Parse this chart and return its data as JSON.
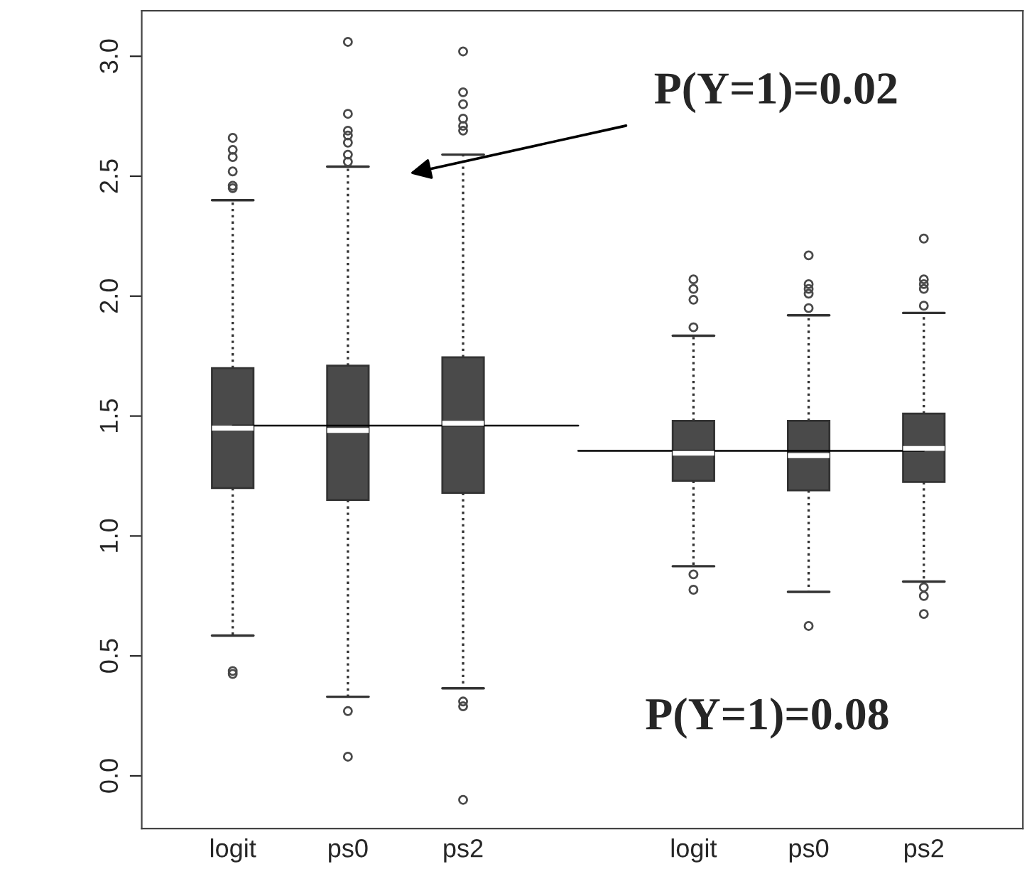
{
  "chart_data": {
    "type": "box",
    "categories": [
      "logit",
      "ps0",
      "ps2",
      null,
      "logit",
      "ps0",
      "ps2"
    ],
    "ylim": [
      -0.22,
      3.19
    ],
    "yticks": [
      {
        "value": 0,
        "label": "0.0"
      },
      0.5,
      {
        "value": 1,
        "label": "1.0"
      },
      1.5,
      {
        "value": 2,
        "label": "2.0"
      },
      2.5,
      {
        "value": 3,
        "label": "3.0"
      }
    ],
    "grid": false,
    "series": [
      {
        "type": "box",
        "color": "#4a4a4a",
        "boxes": [
          {
            "low": 0.585,
            "q1": 1.2,
            "median": 1.45,
            "q3": 1.7,
            "high": 2.4,
            "outliers": [
              2.66,
              2.61,
              2.58,
              2.52,
              2.46,
              2.45,
              0.437,
              0.425
            ]
          },
          {
            "low": 0.33,
            "q1": 1.15,
            "median": 1.44,
            "q3": 1.71,
            "high": 2.54,
            "outliers": [
              3.06,
              2.76,
              2.69,
              2.67,
              2.64,
              2.59,
              2.56,
              0.27,
              0.08
            ]
          },
          {
            "low": 0.365,
            "q1": 1.18,
            "median": 1.47,
            "q3": 1.745,
            "high": 2.59,
            "outliers": [
              3.02,
              2.85,
              2.8,
              2.74,
              2.71,
              2.69,
              0.31,
              0.29,
              -0.1
            ]
          },
          null,
          {
            "low": 0.874,
            "q1": 1.23,
            "median": 1.345,
            "q3": 1.48,
            "high": 1.835,
            "outliers": [
              2.07,
              2.03,
              1.985,
              1.87,
              0.84,
              0.776
            ]
          },
          {
            "low": 0.767,
            "q1": 1.19,
            "median": 1.335,
            "q3": 1.48,
            "high": 1.92,
            "outliers": [
              2.17,
              2.05,
              2.03,
              2.01,
              1.95,
              0.625
            ]
          },
          {
            "low": 0.81,
            "q1": 1.225,
            "median": 1.365,
            "q3": 1.51,
            "high": 1.93,
            "outliers": [
              2.24,
              2.07,
              2.05,
              2.03,
              1.96,
              0.786,
              0.75,
              0.675
            ]
          }
        ]
      },
      {
        "type": "line",
        "color": "#000000",
        "values": [
          1.46,
          1.46,
          1.46,
          1.46,
          null,
          null,
          null
        ]
      },
      {
        "type": "line",
        "color": "#000000",
        "values": [
          null,
          null,
          null,
          1.355,
          1.355,
          1.355,
          1.355
        ]
      }
    ],
    "annotations": [
      "P(Y=1)=0.02",
      "P(Y=1)=0.08"
    ]
  }
}
